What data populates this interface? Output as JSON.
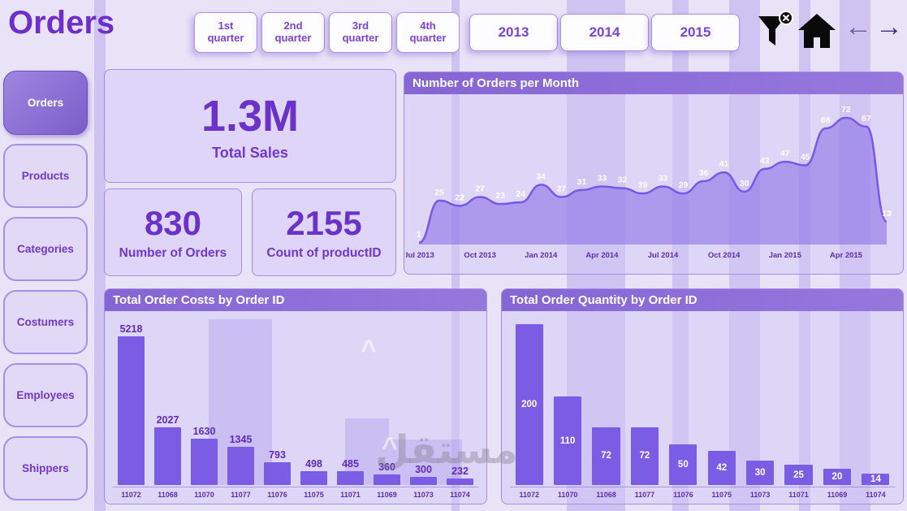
{
  "app": {
    "title": "Orders"
  },
  "header": {
    "quarters": [
      "1st quarter",
      "2nd quarter",
      "3rd quarter",
      "4th quarter"
    ],
    "years": [
      "2013",
      "2014",
      "2015"
    ],
    "icons": {
      "filter": "filter-clear-icon",
      "home": "home-icon"
    },
    "back_arrow": "←",
    "forward_arrow": "→"
  },
  "sidebar": {
    "items": [
      {
        "label": "Orders",
        "active": true
      },
      {
        "label": "Products",
        "active": false
      },
      {
        "label": "Categories",
        "active": false
      },
      {
        "label": "Costumers",
        "active": false
      },
      {
        "label": "Employees",
        "active": false
      },
      {
        "label": "Shippers",
        "active": false
      }
    ]
  },
  "kpis": {
    "total_sales": {
      "value": "1.3M",
      "label": "Total Sales"
    },
    "order_count": {
      "value": "830",
      "label": "Number of Orders"
    },
    "product_count": {
      "value": "2155",
      "label": "Count of productID"
    }
  },
  "chart_data": [
    {
      "type": "area",
      "title": "Number of Orders per Month",
      "values": [
        1,
        25,
        22,
        27,
        23,
        24,
        34,
        27,
        31,
        33,
        32,
        29,
        33,
        29,
        36,
        41,
        30,
        43,
        47,
        45,
        66,
        72,
        67,
        13
      ],
      "tick_labels": [
        "Jul 2013",
        "Oct 2013",
        "Jan 2014",
        "Apr 2014",
        "Jul 2014",
        "Oct 2014",
        "Jan 2015",
        "Apr 2015"
      ],
      "tick_positions": [
        0,
        3,
        6,
        9,
        12,
        15,
        18,
        21
      ],
      "ylim": [
        0,
        78
      ],
      "line_color": "#7a57e6",
      "fill_color": "rgba(134,106,229,0.55)",
      "legend": "none",
      "grid": false
    },
    {
      "type": "bar",
      "title": "Total Order Costs by Order ID",
      "categories": [
        "11072",
        "11068",
        "11070",
        "11077",
        "11076",
        "11075",
        "11071",
        "11069",
        "11073",
        "11074"
      ],
      "values": [
        5218,
        2027,
        1630,
        1345,
        793,
        498,
        485,
        360,
        300,
        232
      ],
      "ylim": [
        0,
        6000
      ],
      "value_labels": "above",
      "bar_color": "#7b5ce4",
      "xlabel": "Order ID",
      "ylabel": "Total Order Costs"
    },
    {
      "type": "bar",
      "title": "Total Order Quantity by Order ID",
      "categories": [
        "11072",
        "11070",
        "11068",
        "11077",
        "11076",
        "11075",
        "11073",
        "11071",
        "11069",
        "11074"
      ],
      "values": [
        200,
        110,
        72,
        72,
        50,
        42,
        30,
        25,
        20,
        14
      ],
      "ylim": [
        0,
        212
      ],
      "value_labels": "inside",
      "bar_color": "#7b5ce4",
      "xlabel": "Order ID",
      "ylabel": "Total Order Quantity"
    }
  ],
  "watermark": {
    "text": "مستقل"
  },
  "colors": {
    "accent": "#7b5ce4",
    "title_text": "#6e2ec9",
    "dark_text": "#5e2bb8",
    "chart_header_bg": "#8a69d7",
    "background": "#e9e3f8"
  }
}
